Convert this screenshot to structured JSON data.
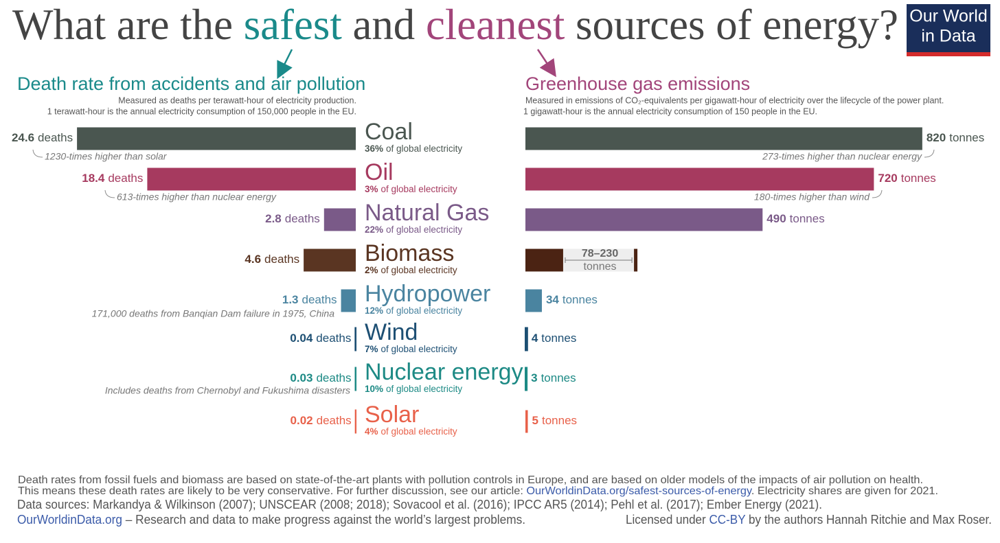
{
  "header": {
    "title": [
      "What are the ",
      "safest",
      " and ",
      "cleanest",
      " sources of energy?"
    ],
    "logo": [
      "Our World",
      "in Data"
    ]
  },
  "chart_data": [
    {
      "type": "bar",
      "direction": "left",
      "title": "Death rate from accidents and air pollution",
      "subtitle": [
        "Measured as deaths per terawatt-hour of electricity production.",
        "1 terawatt-hour is the annual electricity consumption of 150,000 people in the EU."
      ],
      "categories": [
        "Coal",
        "Oil",
        "Natural Gas",
        "Biomass",
        "Hydropower",
        "Wind",
        "Nuclear energy",
        "Solar"
      ],
      "shares": [
        "36%",
        "3%",
        "22%",
        "2%",
        "12%",
        "7%",
        "10%",
        "4%"
      ],
      "share_suffix": "of global electricity",
      "values": [
        24.6,
        18.4,
        2.8,
        4.6,
        1.3,
        0.04,
        0.03,
        0.02
      ],
      "value_unit": "deaths",
      "notes": [
        "1230-times higher than solar",
        "613-times higher than nuclear energy",
        null,
        null,
        "171,000 deaths from Banqian Dam failure in 1975, China",
        null,
        "Includes deaths from Chernobyl and Fukushima disasters",
        null
      ],
      "colors": [
        "#4a5650",
        "#a63a5f",
        "#7a5a88",
        "#5a3522",
        "#4a84a0",
        "#1d4f73",
        "#1d8a85",
        "#e8614a"
      ],
      "xlim": [
        0,
        25
      ]
    },
    {
      "type": "bar",
      "direction": "right",
      "title": "Greenhouse gas emissions",
      "subtitle": [
        "Measured in emissions of CO₂-equivalents per gigawatt-hour of electricity over the lifecycle of the power plant.",
        "1 gigawatt-hour is the annual electricity consumption of 150 people in the EU."
      ],
      "values": [
        820,
        720,
        490,
        78,
        34,
        4,
        3,
        5
      ],
      "highs": [
        null,
        null,
        null,
        230,
        null,
        null,
        null,
        null
      ],
      "value_labels": [
        null,
        null,
        null,
        "78–230",
        null,
        null,
        null,
        null
      ],
      "value_unit": "tonnes",
      "notes": [
        "273-times higher than nuclear energy",
        "180-times higher than wind",
        null,
        null,
        null,
        null,
        null,
        null
      ],
      "colors": [
        "#4a5650",
        "#a63a5f",
        "#7a5a88",
        "#4b2313",
        "#4a84a0",
        "#1d4f73",
        "#1d8a85",
        "#e8614a"
      ],
      "xlim": [
        0,
        850
      ]
    }
  ],
  "footer": {
    "lines": [
      "Death rates from fossil fuels and biomass are based on state-of-the-art plants with pollution controls in Europe, and are based on older models of the impacts of air pollution on health.",
      "Data sources: Markandya & Wilkinson (2007); UNSCEAR (2008; 2018); Sovacool et al. (2016); IPCC AR5 (2014); Pehl et al. (2017); Ember Energy (2021)."
    ],
    "article": [
      "This means these death rates are likely to be very conservative. For further discussion, see our article: ",
      "OurWorldinData.org/safest-sources-of-energy",
      ". Electricity shares are given for 2021."
    ],
    "mission": [
      "OurWorldinData.org",
      " – Research and data to make progress against the world’s largest problems."
    ],
    "license": [
      "Licensed under ",
      "CC-BY",
      " by the authors Hannah Ritchie and Max Roser."
    ]
  }
}
